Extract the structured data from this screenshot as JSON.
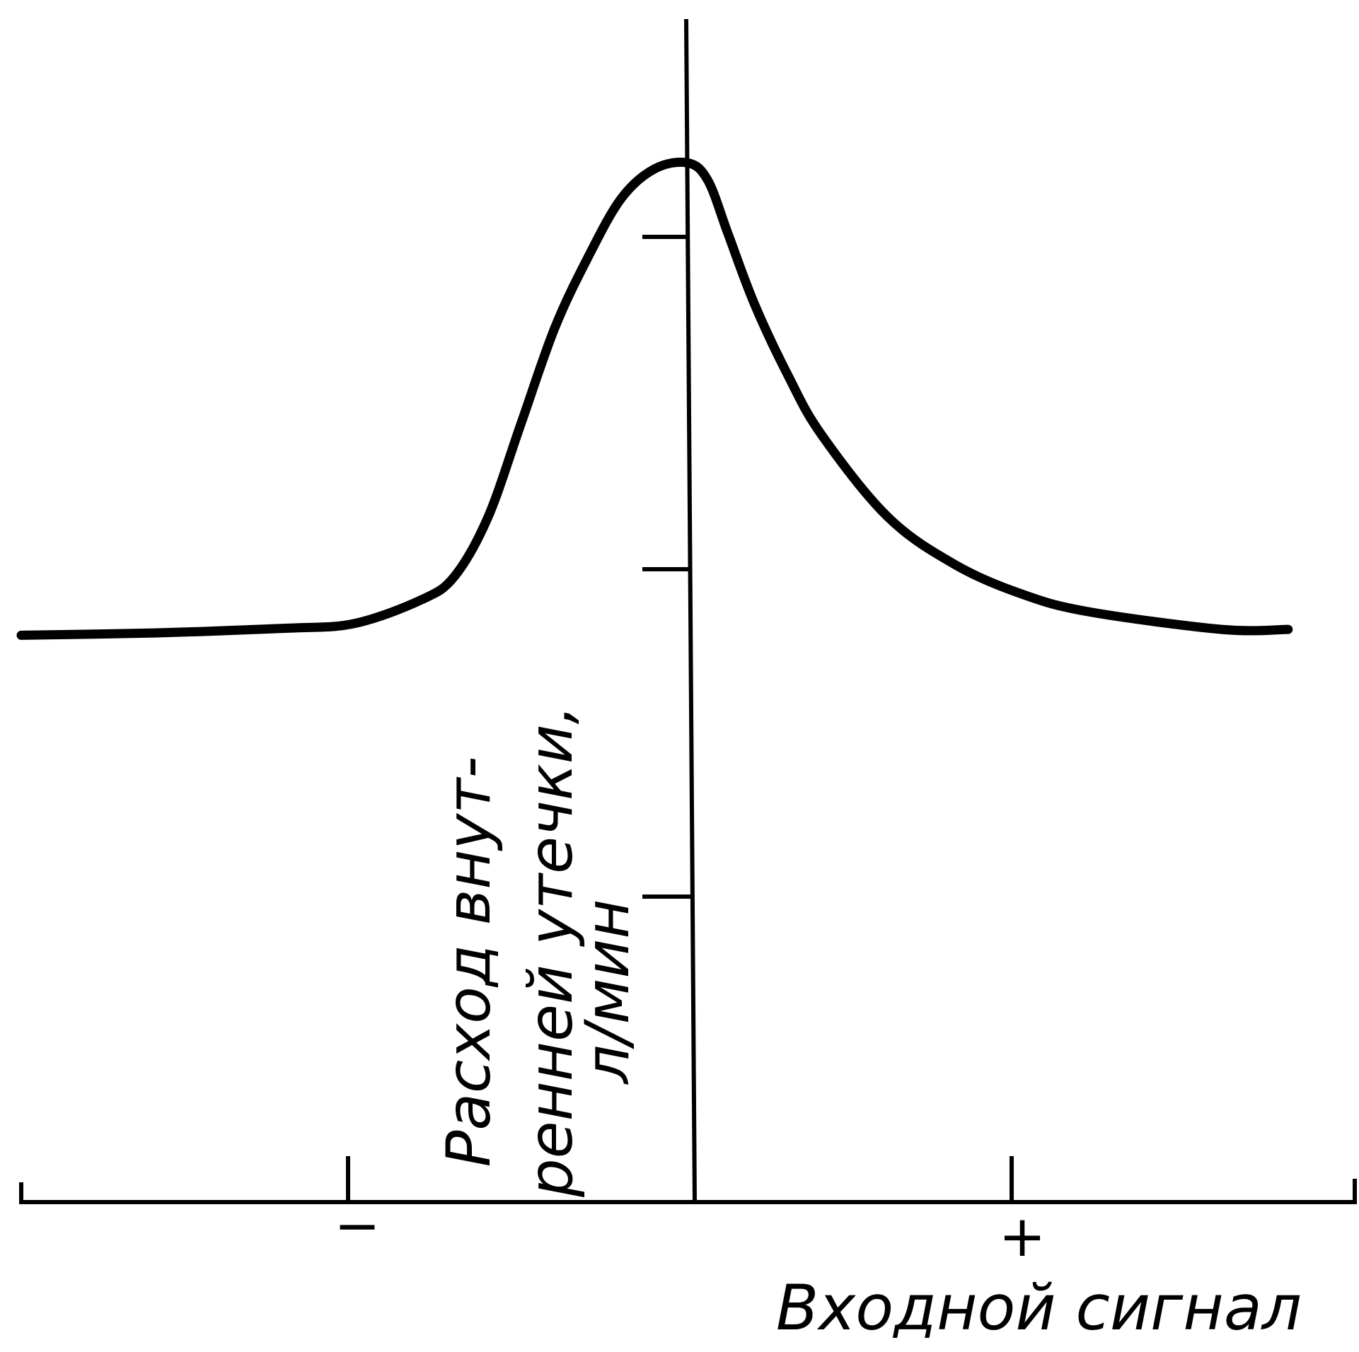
{
  "chart_data": {
    "type": "line",
    "title": "",
    "xlabel": "Входной сигнал",
    "ylabel_lines": [
      "Расход внут-",
      "ренней утечки,",
      "л/мин"
    ],
    "x_tick_labels": [
      "−",
      "+"
    ],
    "xlim": [
      -1,
      1
    ],
    "ylim": [
      0,
      1
    ],
    "grid": false,
    "series": [
      {
        "x": [
          -1.0,
          -0.8,
          -0.6,
          -0.5,
          -0.4,
          -0.35,
          -0.3,
          -0.25,
          -0.2,
          -0.15,
          -0.1,
          -0.05,
          0.0,
          0.03,
          0.06,
          0.1,
          0.15,
          0.2,
          0.3,
          0.4,
          0.5,
          0.6,
          0.8,
          0.9
        ],
        "y": [
          0.48,
          0.482,
          0.486,
          0.49,
          0.51,
          0.53,
          0.58,
          0.66,
          0.74,
          0.8,
          0.85,
          0.875,
          0.88,
          0.865,
          0.82,
          0.76,
          0.7,
          0.65,
          0.58,
          0.54,
          0.515,
          0.5,
          0.485,
          0.485
        ]
      }
    ]
  }
}
